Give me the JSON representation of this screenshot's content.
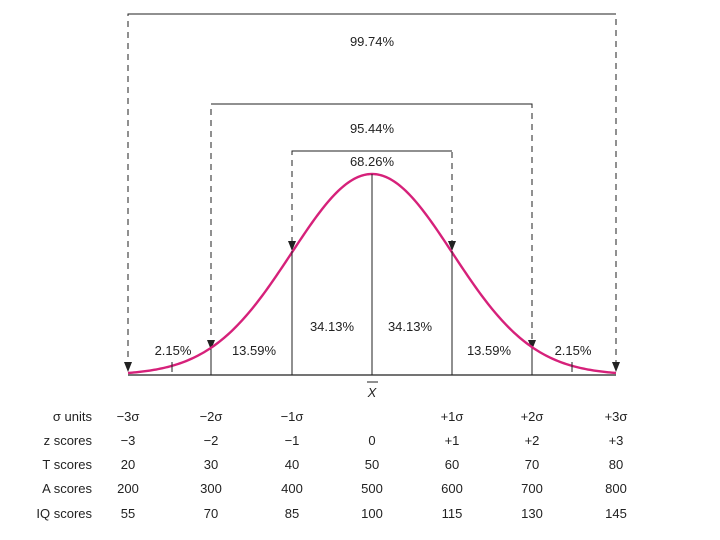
{
  "brackets": {
    "outer": "99.74%",
    "middle": "95.44%",
    "inner": "68.26%"
  },
  "segments": {
    "left_tail": "2.15%",
    "left_2": "13.59%",
    "left_1": "34.13%",
    "right_1": "34.13%",
    "right_2": "13.59%",
    "right_tail": "2.15%"
  },
  "mean_label": "X",
  "colors": {
    "curve": "#d6217a",
    "lines": "#222222"
  },
  "rows": [
    {
      "label": "σ units",
      "values": [
        "−3σ",
        "−2σ",
        "−1σ",
        "",
        "+1σ",
        "+2σ",
        "+3σ"
      ]
    },
    {
      "label": "z scores",
      "values": [
        "−3",
        "−2",
        "−1",
        "0",
        "+1",
        "+2",
        "+3"
      ]
    },
    {
      "label": "T scores",
      "values": [
        "20",
        "30",
        "40",
        "50",
        "60",
        "70",
        "80"
      ]
    },
    {
      "label": "A scores",
      "values": [
        "200",
        "300",
        "400",
        "500",
        "600",
        "700",
        "800"
      ]
    },
    {
      "label": "IQ scores",
      "values": [
        "55",
        "70",
        "85",
        "100",
        "115",
        "130",
        "145"
      ]
    }
  ]
}
